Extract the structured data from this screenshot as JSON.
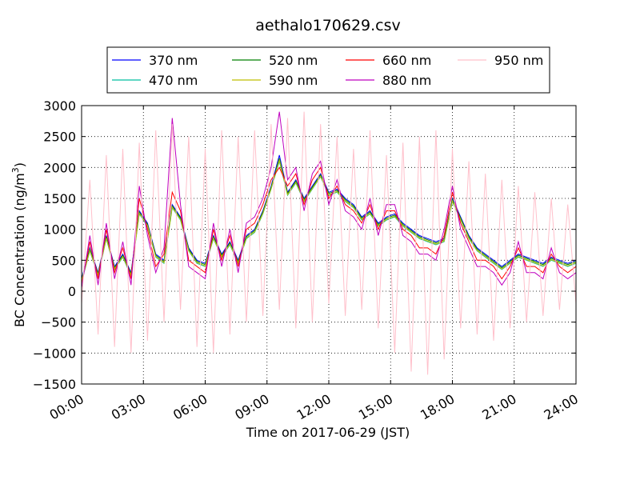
{
  "chart_data": {
    "type": "line",
    "title": "aethalo170629.csv",
    "xlabel": "Time on 2017-06-29 (JST)",
    "ylabel_main": "BC Concentration (ng/m",
    "ylabel_sup": "3",
    "ylabel_end": ")",
    "x_unit": "hours",
    "xlim": [
      0,
      24
    ],
    "ylim": [
      -1500,
      3000
    ],
    "x_ticks": [
      {
        "value": 0,
        "label": "00:00"
      },
      {
        "value": 3,
        "label": "03:00"
      },
      {
        "value": 6,
        "label": "06:00"
      },
      {
        "value": 9,
        "label": "09:00"
      },
      {
        "value": 12,
        "label": "12:00"
      },
      {
        "value": 15,
        "label": "15:00"
      },
      {
        "value": 18,
        "label": "18:00"
      },
      {
        "value": 21,
        "label": "21:00"
      },
      {
        "value": 24,
        "label": "24:00"
      }
    ],
    "y_ticks": [
      {
        "value": 3000,
        "label": "3000"
      },
      {
        "value": 2500,
        "label": "2500"
      },
      {
        "value": 2000,
        "label": "2000"
      },
      {
        "value": 1500,
        "label": "1500"
      },
      {
        "value": 1000,
        "label": "1000"
      },
      {
        "value": 500,
        "label": "500"
      },
      {
        "value": 0,
        "label": "0"
      },
      {
        "value": -500,
        "label": "−500"
      },
      {
        "value": -1000,
        "label": "−1000"
      },
      {
        "value": -1500,
        "label": "−1500"
      }
    ],
    "grid": true,
    "legend_position": "top-center",
    "x": [
      0,
      0.4,
      0.8,
      1.2,
      1.6,
      2,
      2.4,
      2.8,
      3.2,
      3.6,
      4,
      4.4,
      4.8,
      5.2,
      5.6,
      6,
      6.4,
      6.8,
      7.2,
      7.6,
      8,
      8.4,
      8.8,
      9.2,
      9.6,
      10,
      10.4,
      10.8,
      11.2,
      11.6,
      12,
      12.4,
      12.8,
      13.2,
      13.6,
      14,
      14.4,
      14.8,
      15.2,
      15.6,
      16,
      16.4,
      16.8,
      17.2,
      17.6,
      18,
      18.4,
      18.8,
      19.2,
      19.6,
      20,
      20.4,
      20.8,
      21.2,
      21.6,
      22,
      22.4,
      22.8,
      23.2,
      23.6,
      24
    ],
    "series": [
      {
        "name": "370 nm",
        "color": "#0000ff",
        "values": [
          200,
          700,
          300,
          900,
          400,
          600,
          300,
          1300,
          1100,
          600,
          500,
          1400,
          1200,
          700,
          500,
          450,
          900,
          600,
          800,
          500,
          900,
          1000,
          1300,
          1700,
          2200,
          1600,
          1800,
          1500,
          1700,
          1900,
          1600,
          1650,
          1500,
          1400,
          1200,
          1300,
          1100,
          1200,
          1250,
          1100,
          1000,
          900,
          850,
          800,
          850,
          1500,
          1200,
          900,
          700,
          600,
          500,
          400,
          500,
          600,
          550,
          500,
          450,
          550,
          500,
          450,
          500
        ]
      },
      {
        "name": "470 nm",
        "color": "#00bfa0",
        "values": [
          150,
          650,
          250,
          850,
          350,
          550,
          250,
          1250,
          1050,
          550,
          450,
          1350,
          1150,
          650,
          450,
          400,
          850,
          550,
          750,
          450,
          850,
          950,
          1250,
          1650,
          2100,
          1550,
          1750,
          1450,
          1650,
          1850,
          1550,
          1600,
          1450,
          1350,
          1150,
          1250,
          1050,
          1150,
          1200,
          1050,
          950,
          850,
          800,
          750,
          800,
          1450,
          1150,
          850,
          650,
          550,
          450,
          350,
          450,
          550,
          500,
          450,
          400,
          500,
          450,
          400,
          450
        ]
      },
      {
        "name": "520 nm",
        "color": "#008000",
        "values": [
          180,
          680,
          280,
          880,
          380,
          580,
          280,
          1280,
          1080,
          580,
          480,
          1380,
          1180,
          680,
          480,
          430,
          880,
          580,
          780,
          480,
          880,
          980,
          1280,
          1680,
          2150,
          1580,
          1780,
          1480,
          1680,
          1880,
          1580,
          1630,
          1480,
          1380,
          1180,
          1280,
          1080,
          1180,
          1230,
          1080,
          980,
          880,
          830,
          780,
          830,
          1480,
          1180,
          880,
          680,
          580,
          480,
          380,
          480,
          580,
          530,
          480,
          430,
          530,
          480,
          430,
          480
        ]
      },
      {
        "name": "590 nm",
        "color": "#bfbf00",
        "values": [
          160,
          660,
          260,
          860,
          360,
          560,
          260,
          1260,
          1060,
          560,
          460,
          1360,
          1160,
          660,
          460,
          410,
          860,
          560,
          760,
          460,
          860,
          960,
          1260,
          1660,
          2120,
          1560,
          1760,
          1460,
          1660,
          1860,
          1560,
          1610,
          1460,
          1360,
          1160,
          1260,
          1060,
          1160,
          1210,
          1060,
          960,
          860,
          810,
          760,
          810,
          1460,
          1160,
          860,
          660,
          560,
          460,
          360,
          460,
          560,
          510,
          460,
          410,
          510,
          460,
          410,
          460
        ]
      },
      {
        "name": "660 nm",
        "color": "#ff0000",
        "values": [
          100,
          800,
          200,
          1000,
          300,
          700,
          200,
          1500,
          1000,
          400,
          600,
          1600,
          1300,
          500,
          400,
          300,
          1000,
          500,
          900,
          400,
          1000,
          1100,
          1400,
          1800,
          2000,
          1700,
          1900,
          1400,
          1800,
          2000,
          1500,
          1700,
          1400,
          1300,
          1100,
          1400,
          1000,
          1300,
          1300,
          1000,
          900,
          700,
          700,
          600,
          900,
          1600,
          1100,
          800,
          500,
          500,
          400,
          200,
          400,
          700,
          400,
          400,
          300,
          600,
          400,
          300,
          400
        ]
      },
      {
        "name": "880 nm",
        "color": "#bf00bf",
        "values": [
          50,
          900,
          100,
          1100,
          200,
          800,
          100,
          1700,
          900,
          300,
          700,
          2800,
          1400,
          400,
          300,
          200,
          1100,
          400,
          1000,
          300,
          1100,
          1200,
          1500,
          2000,
          2900,
          1800,
          2000,
          1300,
          1900,
          2100,
          1400,
          1800,
          1300,
          1200,
          1000,
          1500,
          900,
          1400,
          1400,
          900,
          800,
          600,
          600,
          500,
          1000,
          1700,
          1000,
          700,
          400,
          400,
          300,
          100,
          300,
          800,
          300,
          300,
          200,
          700,
          300,
          200,
          300
        ]
      },
      {
        "name": "950 nm",
        "color": "#ffc0cb",
        "values": [
          -200,
          1800,
          -700,
          2200,
          -900,
          2300,
          -1000,
          2400,
          -800,
          2600,
          -500,
          2700,
          -300,
          2500,
          -900,
          2300,
          -1000,
          2600,
          -700,
          2500,
          -500,
          2600,
          -400,
          2700,
          -300,
          2800,
          -600,
          2900,
          -500,
          2700,
          -200,
          2500,
          -400,
          2300,
          -300,
          2600,
          -600,
          2200,
          -1000,
          2400,
          -1300,
          2500,
          -1350,
          2600,
          -1100,
          2300,
          -600,
          2100,
          -700,
          1900,
          -800,
          1800,
          -600,
          1700,
          -500,
          1600,
          -400,
          1500,
          -300,
          1400,
          -200
        ]
      }
    ]
  }
}
